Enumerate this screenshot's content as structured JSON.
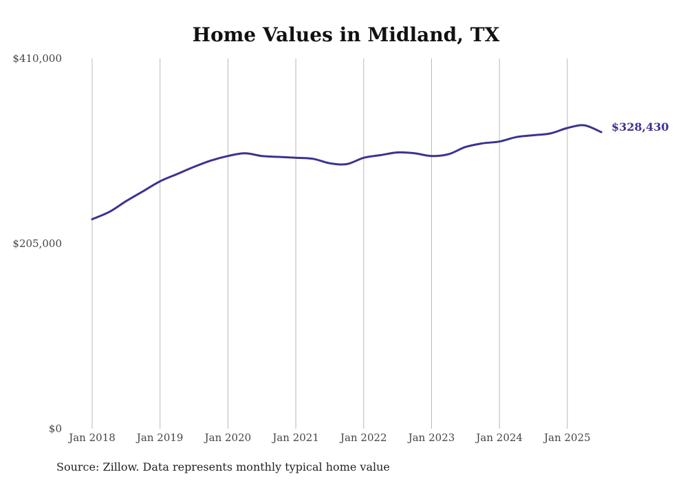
{
  "chart_data": {
    "type": "line",
    "title": "Home Values in Midland, TX",
    "xlabel": "",
    "ylabel": "",
    "ylim": [
      0,
      410000
    ],
    "yticks": [
      0,
      205000,
      410000
    ],
    "ytick_labels": [
      "$0",
      "$205,000",
      "$410,000"
    ],
    "x_tick_labels": [
      "Jan 2018",
      "Jan 2019",
      "Jan 2020",
      "Jan 2021",
      "Jan 2022",
      "Jan 2023",
      "Jan 2024",
      "Jan 2025"
    ],
    "x_range": [
      "Jan 2018",
      "Jul 2025"
    ],
    "grid": "vertical",
    "line_color": "#3a3390",
    "end_label": "$328,430",
    "source": "Source: Zillow. Data represents monthly typical home value",
    "series": [
      {
        "x": [
          "Jan 2018",
          "Apr 2018",
          "Jul 2018",
          "Oct 2018",
          "Jan 2019",
          "Apr 2019",
          "Jul 2019",
          "Oct 2019",
          "Jan 2020",
          "Apr 2020",
          "Jul 2020",
          "Oct 2020",
          "Jan 2021",
          "Apr 2021",
          "Jul 2021",
          "Oct 2021",
          "Jan 2022",
          "Apr 2022",
          "Jul 2022",
          "Oct 2022",
          "Jan 2023",
          "Apr 2023",
          "Jul 2023",
          "Oct 2023",
          "Jan 2024",
          "Apr 2024",
          "Jul 2024",
          "Oct 2024",
          "Jan 2025",
          "Apr 2025",
          "Jul 2025"
        ],
        "values": [
          232000,
          240000,
          252000,
          263000,
          274000,
          282000,
          290000,
          297000,
          302000,
          305000,
          302000,
          301000,
          300000,
          299000,
          294000,
          293000,
          300000,
          303000,
          306000,
          305000,
          302000,
          304000,
          312000,
          316000,
          318000,
          323000,
          325000,
          327000,
          333000,
          336000,
          328430
        ]
      }
    ]
  }
}
